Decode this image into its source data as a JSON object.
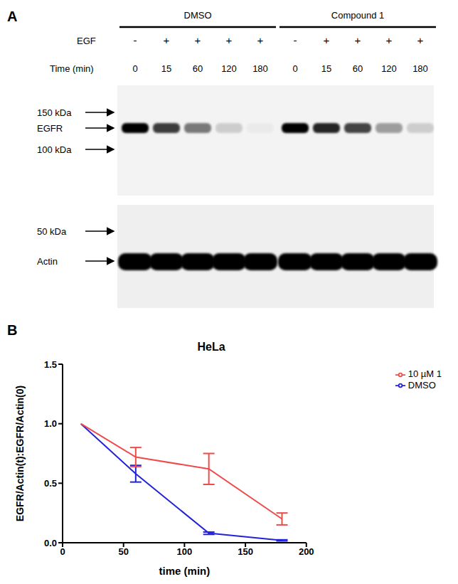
{
  "panel_a": {
    "label": "A",
    "row_labels": {
      "egf": "EGF",
      "time": "Time (min)"
    },
    "groups": [
      {
        "name": "DMSO",
        "egf": [
          "-",
          "+",
          "+",
          "+",
          "+"
        ],
        "time": [
          0,
          15,
          60,
          120,
          180
        ],
        "egfr_band_intensity": [
          1,
          0.75,
          0.5,
          0.15,
          0.03
        ],
        "actin_band_intensity": [
          1,
          1,
          1,
          1,
          1
        ]
      },
      {
        "name": "Compound 1",
        "egf": [
          "-",
          "+",
          "+",
          "+",
          "+"
        ],
        "time": [
          0,
          15,
          60,
          120,
          180
        ],
        "egfr_band_intensity": [
          1,
          0.85,
          0.72,
          0.35,
          0.15
        ],
        "actin_band_intensity": [
          1,
          1,
          1,
          1,
          1
        ]
      }
    ],
    "egfr_blot": {
      "markers": [
        "150 kDa",
        "EGFR",
        "100 kDa"
      ]
    },
    "actin_blot": {
      "markers": [
        "50 kDa",
        "Actin"
      ]
    }
  },
  "chart_data": {
    "type": "line",
    "panel_label": "B",
    "title": "HeLa",
    "x_label": "time (min)",
    "y_label": "EGFR/Actin(t):EGFR/Actin(0)",
    "xlim": [
      0,
      200
    ],
    "xticks": [
      0,
      50,
      100,
      150,
      200
    ],
    "ylim": [
      0,
      1.5
    ],
    "yticks": [
      {
        "value": 0,
        "label": "0.0"
      },
      0.5,
      {
        "value": 1,
        "label": "1.0"
      },
      1.5
    ],
    "legend": "right",
    "series": [
      {
        "name": "DMSO",
        "color": "#2323d8",
        "x": [
          15,
          60,
          120,
          180
        ],
        "values": [
          1.0,
          0.58,
          0.08,
          0.02
        ],
        "errors": [
          0,
          0.07,
          0.01,
          0.005
        ]
      },
      {
        "name": "10 µM 1",
        "color": "#ee4b4b",
        "x": [
          15,
          60,
          120,
          180
        ],
        "values": [
          1.0,
          0.72,
          0.62,
          0.2
        ],
        "errors": [
          0,
          0.08,
          0.13,
          0.05
        ]
      }
    ]
  }
}
